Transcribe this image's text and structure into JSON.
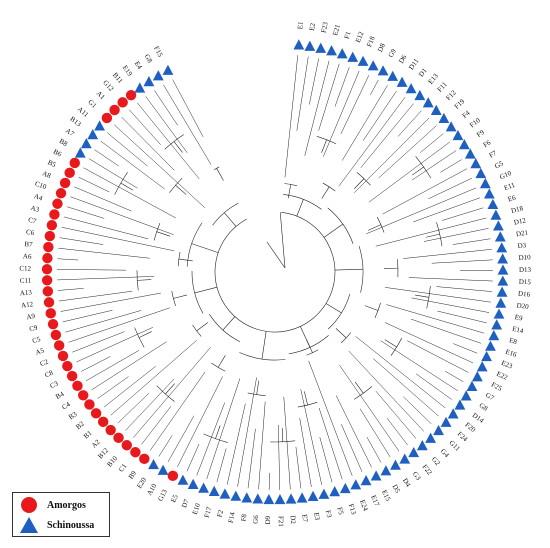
{
  "colors": {
    "amorgos": "#e8191c",
    "schinoussa": "#1f5fbf",
    "branch": "#222222"
  },
  "legend": {
    "items": [
      {
        "label": "Amorgos",
        "shape": "circle",
        "color": "#e8191c"
      },
      {
        "label": "Schinoussa",
        "shape": "triangle",
        "color": "#1f5fbf"
      }
    ]
  },
  "leaves": [
    {
      "label": "E1",
      "group": "S"
    },
    {
      "label": "E2",
      "group": "S"
    },
    {
      "label": "F23",
      "group": "S"
    },
    {
      "label": "E21",
      "group": "S"
    },
    {
      "label": "F1",
      "group": "S"
    },
    {
      "label": "E12",
      "group": "S"
    },
    {
      "label": "F18",
      "group": "S"
    },
    {
      "label": "D8",
      "group": "S"
    },
    {
      "label": "G9",
      "group": "S"
    },
    {
      "label": "D6",
      "group": "S"
    },
    {
      "label": "D11",
      "group": "S"
    },
    {
      "label": "D1",
      "group": "S"
    },
    {
      "label": "E13",
      "group": "S"
    },
    {
      "label": "F11",
      "group": "S"
    },
    {
      "label": "F12",
      "group": "S"
    },
    {
      "label": "F19",
      "group": "S"
    },
    {
      "label": "F4",
      "group": "S"
    },
    {
      "label": "F10",
      "group": "S"
    },
    {
      "label": "F9",
      "group": "S"
    },
    {
      "label": "F6",
      "group": "S"
    },
    {
      "label": "F7",
      "group": "S"
    },
    {
      "label": "G5",
      "group": "S"
    },
    {
      "label": "G10",
      "group": "S"
    },
    {
      "label": "E11",
      "group": "S"
    },
    {
      "label": "E6",
      "group": "S"
    },
    {
      "label": "D18",
      "group": "S"
    },
    {
      "label": "D12",
      "group": "S"
    },
    {
      "label": "D21",
      "group": "S"
    },
    {
      "label": "D3",
      "group": "S"
    },
    {
      "label": "D10",
      "group": "S"
    },
    {
      "label": "D13",
      "group": "S"
    },
    {
      "label": "D15",
      "group": "S"
    },
    {
      "label": "D16",
      "group": "S"
    },
    {
      "label": "D20",
      "group": "S"
    },
    {
      "label": "E9",
      "group": "S"
    },
    {
      "label": "E14",
      "group": "S"
    },
    {
      "label": "E8",
      "group": "S"
    },
    {
      "label": "E16",
      "group": "S"
    },
    {
      "label": "E23",
      "group": "S"
    },
    {
      "label": "E22",
      "group": "S"
    },
    {
      "label": "F25",
      "group": "S"
    },
    {
      "label": "G7",
      "group": "S"
    },
    {
      "label": "G8",
      "group": "S"
    },
    {
      "label": "D14",
      "group": "S"
    },
    {
      "label": "F20",
      "group": "S"
    },
    {
      "label": "F24",
      "group": "S"
    },
    {
      "label": "G11",
      "group": "S"
    },
    {
      "label": "G4",
      "group": "S"
    },
    {
      "label": "G2",
      "group": "S"
    },
    {
      "label": "F22",
      "group": "S"
    },
    {
      "label": "G3",
      "group": "S"
    },
    {
      "label": "D4",
      "group": "S"
    },
    {
      "label": "D5",
      "group": "S"
    },
    {
      "label": "E15",
      "group": "S"
    },
    {
      "label": "E17",
      "group": "S"
    },
    {
      "label": "E24",
      "group": "S"
    },
    {
      "label": "F13",
      "group": "S"
    },
    {
      "label": "F5",
      "group": "S"
    },
    {
      "label": "F3",
      "group": "S"
    },
    {
      "label": "E3",
      "group": "S"
    },
    {
      "label": "E7",
      "group": "S"
    },
    {
      "label": "D2",
      "group": "S"
    },
    {
      "label": "F21",
      "group": "S"
    },
    {
      "label": "D9",
      "group": "S"
    },
    {
      "label": "G6",
      "group": "S"
    },
    {
      "label": "F8",
      "group": "S"
    },
    {
      "label": "F14",
      "group": "S"
    },
    {
      "label": "F2",
      "group": "S"
    },
    {
      "label": "F17",
      "group": "S"
    },
    {
      "label": "E10",
      "group": "S"
    },
    {
      "label": "D7",
      "group": "S"
    },
    {
      "label": "E5",
      "group": "S"
    },
    {
      "label": "G13",
      "group": "A"
    },
    {
      "label": "A10",
      "group": "S"
    },
    {
      "label": "E20",
      "group": "S"
    },
    {
      "label": "B9",
      "group": "A"
    },
    {
      "label": "C1",
      "group": "A"
    },
    {
      "label": "B10",
      "group": "A"
    },
    {
      "label": "B12",
      "group": "A"
    },
    {
      "label": "A2",
      "group": "A"
    },
    {
      "label": "B1",
      "group": "A"
    },
    {
      "label": "B2",
      "group": "A"
    },
    {
      "label": "B3",
      "group": "A"
    },
    {
      "label": "C4",
      "group": "A"
    },
    {
      "label": "B4",
      "group": "A"
    },
    {
      "label": "C3",
      "group": "A"
    },
    {
      "label": "C8",
      "group": "A"
    },
    {
      "label": "C2",
      "group": "A"
    },
    {
      "label": "A5",
      "group": "A"
    },
    {
      "label": "C5",
      "group": "A"
    },
    {
      "label": "C9",
      "group": "A"
    },
    {
      "label": "A9",
      "group": "A"
    },
    {
      "label": "A12",
      "group": "A"
    },
    {
      "label": "A13",
      "group": "A"
    },
    {
      "label": "C11",
      "group": "A"
    },
    {
      "label": "C12",
      "group": "A"
    },
    {
      "label": "A6",
      "group": "A"
    },
    {
      "label": "B7",
      "group": "A"
    },
    {
      "label": "C6",
      "group": "A"
    },
    {
      "label": "C7",
      "group": "A"
    },
    {
      "label": "A3",
      "group": "A"
    },
    {
      "label": "A4",
      "group": "A"
    },
    {
      "label": "C10",
      "group": "A"
    },
    {
      "label": "A8",
      "group": "A"
    },
    {
      "label": "B5",
      "group": "A"
    },
    {
      "label": "B6",
      "group": "A"
    },
    {
      "label": "B8",
      "group": "S"
    },
    {
      "label": "A7",
      "group": "S"
    },
    {
      "label": "B13",
      "group": "S"
    },
    {
      "label": "A11",
      "group": "S"
    },
    {
      "label": "G1",
      "group": "A"
    },
    {
      "label": "A1",
      "group": "A"
    },
    {
      "label": "G12",
      "group": "A"
    },
    {
      "label": "B11",
      "group": "A"
    },
    {
      "label": "E19",
      "group": "S"
    },
    {
      "label": "E4",
      "group": "S"
    },
    {
      "label": "G8b",
      "group": "S"
    },
    {
      "label": "F15",
      "group": "S"
    }
  ]
}
